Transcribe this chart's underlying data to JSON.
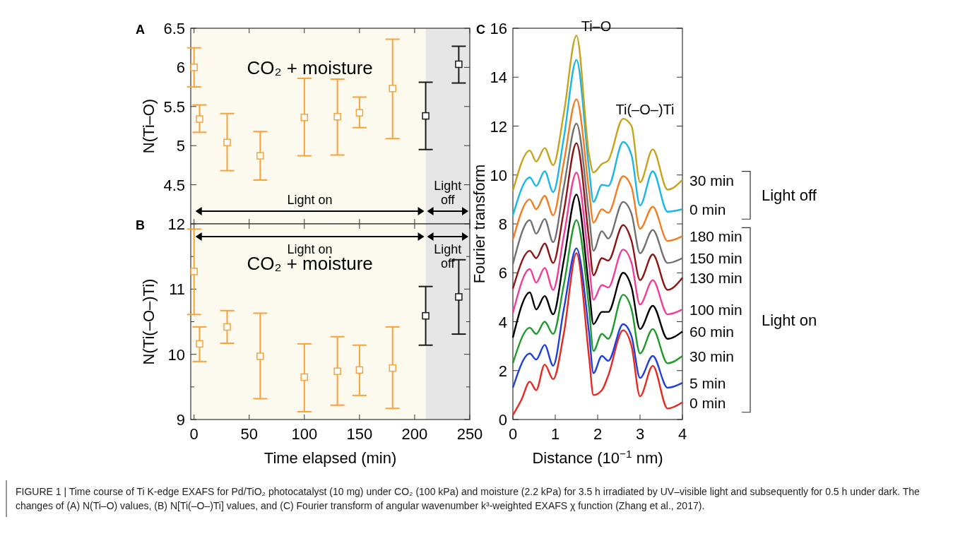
{
  "chart_data": [
    {
      "type": "scatter",
      "title": "A",
      "ylabel": "N(Ti–O)",
      "x": [
        0,
        5,
        30,
        60,
        100,
        130,
        150,
        180,
        210,
        240
      ],
      "xlim": [
        -3,
        250
      ],
      "ylim": [
        4,
        6.5
      ],
      "xticks": [
        0,
        50,
        100,
        150,
        200,
        250
      ],
      "yticks": [
        4.5,
        5,
        5.5,
        6,
        6.5
      ],
      "tick_labels": "y",
      "marker": "square",
      "grid": false,
      "series": [
        {
          "values": [
            6.0,
            5.34,
            5.04,
            4.87,
            5.36,
            5.37,
            5.42,
            5.73,
            5.38,
            6.04
          ],
          "errors": [
            [
              5.75,
              6.25
            ],
            [
              5.17,
              5.52
            ],
            [
              4.68,
              5.41
            ],
            [
              4.56,
              5.18
            ],
            [
              4.87,
              5.86
            ],
            [
              4.88,
              5.85
            ],
            [
              5.23,
              5.62
            ],
            [
              5.09,
              6.36
            ],
            [
              4.95,
              5.81
            ],
            [
              5.8,
              6.27
            ]
          ],
          "colors": [
            "#f7a23a",
            "#f7a23a",
            "#f7a23a",
            "#f7a23a",
            "#f7a23a",
            "#f7a23a",
            "#f7a23a",
            "#f7a23a",
            "#1a1a1a",
            "#1a1a1a"
          ]
        }
      ],
      "bands": [
        {
          "axis": "x",
          "from": -3,
          "to": 210,
          "label": "Light on",
          "color": "#fcf9ee"
        },
        {
          "axis": "x",
          "from": 210,
          "to": 250,
          "label": "Light off",
          "color": "#e6e6e6"
        }
      ],
      "annotations": [
        "CO₂ + moisture"
      ]
    },
    {
      "type": "scatter",
      "title": "B",
      "ylabel": "N(Ti(–O–)Ti)",
      "xlabel": "Time elapsed (min)",
      "x": [
        0,
        5,
        30,
        60,
        100,
        130,
        150,
        180,
        210,
        240
      ],
      "xlim": [
        -3,
        250
      ],
      "ylim": [
        9,
        12
      ],
      "xticks": [
        0,
        50,
        100,
        150,
        200,
        250
      ],
      "yticks": [
        9,
        {
          "value": 9.5,
          "label": null
        },
        10,
        {
          "value": 10.5,
          "label": null
        },
        11,
        {
          "value": 11.5,
          "label": null
        },
        12
      ],
      "marker": "square",
      "grid": false,
      "series": [
        {
          "values": [
            11.27,
            10.16,
            10.42,
            9.97,
            9.65,
            9.74,
            9.76,
            9.79,
            10.59,
            10.88
          ],
          "errors": [
            [
              10.61,
              11.92
            ],
            [
              9.89,
              10.42
            ],
            [
              10.17,
              10.67
            ],
            [
              9.32,
              10.63
            ],
            [
              9.12,
              10.16
            ],
            [
              9.22,
              10.27
            ],
            [
              9.37,
              10.14
            ],
            [
              9.17,
              10.42
            ],
            [
              10.14,
              11.04
            ],
            [
              10.31,
              11.45
            ]
          ],
          "colors": [
            "#f7a23a",
            "#f7a23a",
            "#f7a23a",
            "#f7a23a",
            "#f7a23a",
            "#f7a23a",
            "#f7a23a",
            "#f7a23a",
            "#1a1a1a",
            "#1a1a1a"
          ]
        }
      ],
      "bands": [
        {
          "axis": "x",
          "from": -3,
          "to": 210,
          "label": "Light on",
          "color": "#fcf9ee"
        },
        {
          "axis": "x",
          "from": 210,
          "to": 250,
          "label": "Light off",
          "color": "#e6e6e6"
        }
      ],
      "annotations": [
        "CO₂ + moisture"
      ]
    },
    {
      "type": "line",
      "title": "C",
      "xlabel": "Distance (10$^{−1}$ nm)",
      "ylabel": "Fourier transform",
      "x": [
        0,
        0.4,
        0.55,
        0.75,
        0.95,
        1.2,
        1.5,
        1.8,
        1.9,
        2.1,
        2.25,
        2.6,
        2.8,
        3.0,
        3.3,
        3.65,
        4.0
      ],
      "xlim": [
        0,
        4
      ],
      "ylim": [
        0,
        16
      ],
      "xticks": [
        0,
        1,
        2,
        3,
        4
      ],
      "yticks": [
        0,
        2,
        4,
        6,
        8,
        10,
        12,
        14,
        16
      ],
      "grid": false,
      "legend": "right",
      "line_style": "solid",
      "series": [
        {
          "name": "0 min",
          "color": "#e8281e",
          "x": [
            0,
            0.2,
            0.4,
            0.55,
            0.75,
            0.95,
            1.2,
            1.5,
            1.8,
            1.9,
            2.1,
            2.25,
            2.6,
            2.8,
            3.0,
            3.3,
            3.65,
            4.0
          ],
          "values": [
            0.18,
            0.8,
            1.55,
            1.2,
            2.25,
            1.65,
            3.5,
            6.8,
            2.5,
            1.0,
            1.2,
            1.8,
            3.65,
            3.0,
            0.95,
            2.2,
            0.45,
            0.7
          ]
        },
        {
          "name": "5 min",
          "color": "#1e3fe0",
          "values": [
            1.3,
            2.7,
            2.45,
            3.05,
            2.2,
            4.5,
            7.0,
            3.5,
            1.9,
            2.6,
            2.4,
            3.9,
            3.4,
            1.7,
            2.6,
            1.3,
            1.5
          ]
        },
        {
          "name": "30 min",
          "color": "#1e9a2a",
          "values": [
            2.3,
            3.75,
            3.5,
            4.0,
            3.5,
            5.5,
            8.15,
            4.5,
            2.8,
            3.5,
            3.3,
            5.1,
            4.5,
            2.7,
            3.7,
            2.3,
            2.6
          ]
        },
        {
          "name": "60 min",
          "color": "#000000",
          "values": [
            3.35,
            5.2,
            4.5,
            5.05,
            4.3,
            6.5,
            9.2,
            5.3,
            3.9,
            4.4,
            4.4,
            6.0,
            5.4,
            3.7,
            4.65,
            3.3,
            3.6
          ]
        },
        {
          "name": "100 min",
          "color": "#f23c9a",
          "values": [
            4.35,
            6.15,
            5.6,
            6.2,
            5.3,
            7.5,
            10.1,
            6.3,
            4.9,
            5.5,
            5.4,
            6.95,
            6.4,
            4.7,
            5.7,
            4.3,
            4.5
          ]
        },
        {
          "name": "130 min",
          "color": "#8e1414",
          "values": [
            5.35,
            6.9,
            6.6,
            7.2,
            6.4,
            8.5,
            11.3,
            7.3,
            5.9,
            6.6,
            6.5,
            7.95,
            7.3,
            5.7,
            6.75,
            5.3,
            5.8
          ]
        },
        {
          "name": "150 min",
          "color": "#707070",
          "values": [
            6.35,
            8.15,
            7.6,
            8.2,
            7.25,
            9.5,
            12.1,
            8.3,
            6.9,
            7.7,
            7.4,
            8.9,
            8.4,
            6.8,
            7.75,
            6.4,
            6.6
          ]
        },
        {
          "name": "180 min",
          "color": "#f47c20",
          "values": [
            7.35,
            9.0,
            8.6,
            9.15,
            8.35,
            10.5,
            13.1,
            9.3,
            8.05,
            8.6,
            8.45,
            9.95,
            9.5,
            7.8,
            8.7,
            7.3,
            7.5
          ]
        },
        {
          "name": "0 min",
          "color": "#1ab6e8",
          "values": [
            8.35,
            9.9,
            9.55,
            10.15,
            9.3,
            11.5,
            14.7,
            10.2,
            8.9,
            9.6,
            9.55,
            11.35,
            10.8,
            8.75,
            10.15,
            8.5,
            8.6
          ]
        },
        {
          "name": "30 min",
          "color": "#c8a21a",
          "values": [
            9.35,
            11.0,
            10.55,
            11.1,
            10.4,
            12.5,
            15.7,
            10.8,
            10.1,
            10.45,
            10.6,
            12.3,
            12.0,
            9.7,
            11.05,
            9.4,
            9.8
          ]
        }
      ],
      "annotations": [
        {
          "text": "Ti–O",
          "x": 1.5,
          "y": 15.7
        },
        {
          "text": "Ti(–O–)Ti",
          "x": 2.65,
          "y": 12.3
        },
        "Light off",
        "Light on"
      ]
    },
    {
      "type": "other",
      "annotations": [
        "FIGURE 1 | Time course of Ti K-edge EXAFS for Pd/TiO₂ photocatalyst (10 mg) under CO₂ (100 kPa) and moisture (2.2 kPa) for 3.5 h irradiated by UV–visible light and subsequently for 0.5 h under dark. The changes of (A) N(Ti–O) values, (B) N[Ti(–O–)Ti] values, and (C) Fourier transform of angular wavenumber k³-weighted EXAFS χ function (Zhang et al., 2017)."
      ]
    }
  ]
}
